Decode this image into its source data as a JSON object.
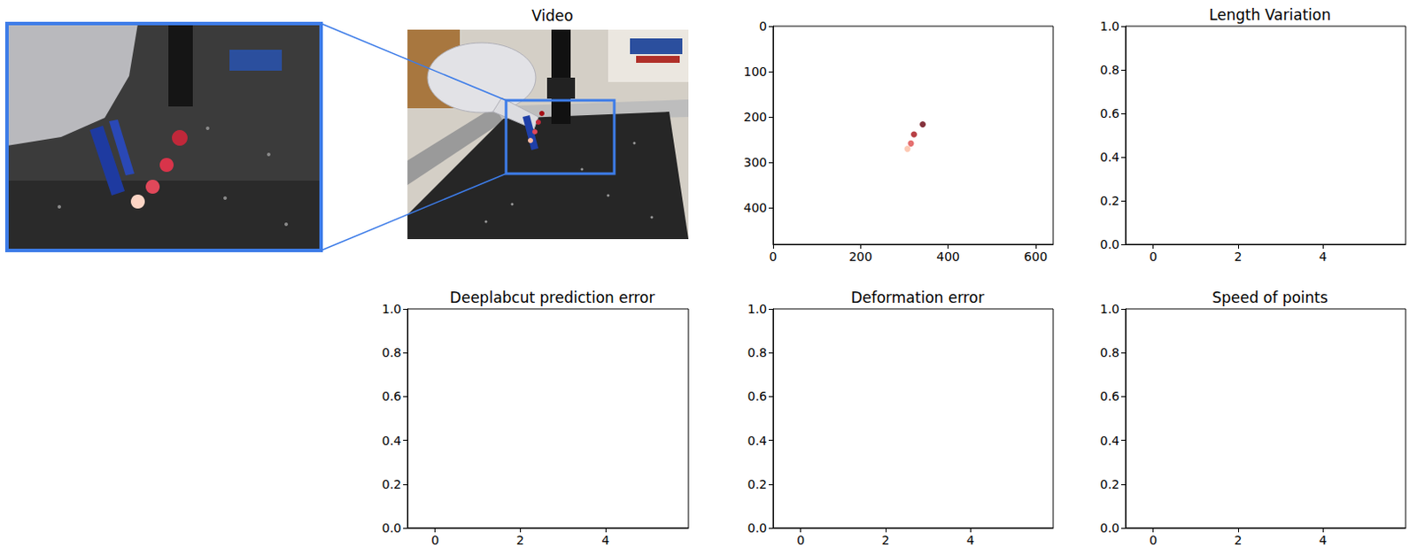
{
  "video": {
    "title": "Video"
  },
  "chart_data": [
    {
      "type": "scatter",
      "x": [
        342,
        322,
        315,
        307
      ],
      "values": [
        216,
        238,
        258,
        270
      ],
      "colors": [
        "#67000d",
        "#a50f15",
        "#de4b4b",
        "#fcbba1"
      ],
      "xlim": [
        0,
        640
      ],
      "xticks": [
        0,
        200,
        400,
        600
      ],
      "ylim": [
        480,
        0
      ],
      "yticks": [
        0,
        100,
        200,
        300,
        400
      ],
      "grid": false
    },
    {
      "type": "line",
      "title": "Length Variation",
      "series": [],
      "xlim": [
        -0.65,
        5.95
      ],
      "xticks": [
        0,
        2,
        4
      ],
      "ylim": [
        0,
        1
      ],
      "yticks": [
        {
          "value": 0,
          "label": "0.0"
        },
        0.2,
        0.4,
        0.6,
        0.8,
        {
          "value": 1,
          "label": "1.0"
        }
      ],
      "grid": false
    },
    {
      "type": "line",
      "title": "Deeplabcut prediction error",
      "series": [],
      "xlim": [
        -0.65,
        5.95
      ],
      "xticks": [
        0,
        2,
        4
      ],
      "ylim": [
        0,
        1
      ],
      "yticks": [
        {
          "value": 0,
          "label": "0.0"
        },
        0.2,
        0.4,
        0.6,
        0.8,
        {
          "value": 1,
          "label": "1.0"
        }
      ],
      "grid": false
    },
    {
      "type": "line",
      "title": "Deformation error",
      "series": [],
      "xlim": [
        -0.65,
        5.95
      ],
      "xticks": [
        0,
        2,
        4
      ],
      "ylim": [
        0,
        1
      ],
      "yticks": [
        {
          "value": 0,
          "label": "0.0"
        },
        0.2,
        0.4,
        0.6,
        0.8,
        {
          "value": 1,
          "label": "1.0"
        }
      ],
      "grid": false
    },
    {
      "type": "line",
      "title": "Speed of points",
      "series": [],
      "xlim": [
        -0.65,
        5.95
      ],
      "xticks": [
        0,
        2,
        4
      ],
      "ylim": [
        0,
        1
      ],
      "yticks": [
        {
          "value": 0,
          "label": "0.0"
        },
        0.2,
        0.4,
        0.6,
        0.8,
        {
          "value": 1,
          "label": "1.0"
        }
      ],
      "grid": false
    }
  ]
}
